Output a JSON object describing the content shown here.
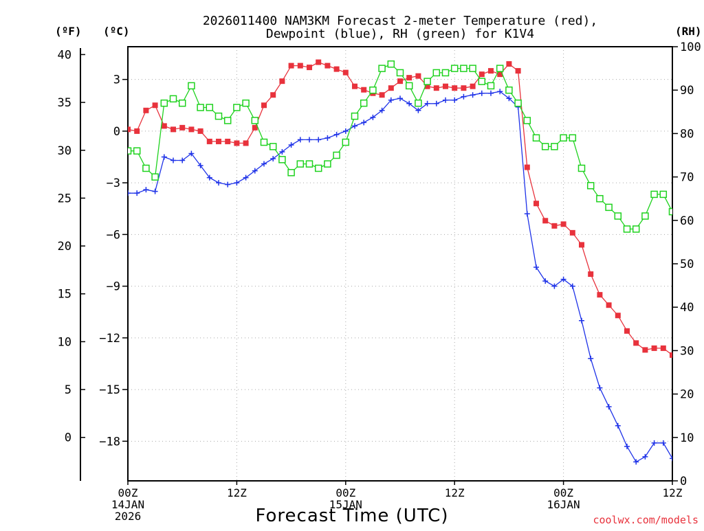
{
  "chart_data": {
    "type": "line",
    "title_line1": "2026011400 NAM3KM Forecast 2-meter Temperature (red),",
    "title_line2": "Dewpoint (blue), RH (green) for K1V4",
    "xlabel": "Forecast Time (UTC)",
    "credit": "coolwx.com/models",
    "x_range_hours": [
      0,
      60
    ],
    "x_ticks": [
      {
        "hour": 0,
        "lines": [
          "00Z",
          "14JAN",
          "2026"
        ]
      },
      {
        "hour": 12,
        "lines": [
          "12Z"
        ]
      },
      {
        "hour": 24,
        "lines": [
          "00Z",
          "15JAN"
        ]
      },
      {
        "hour": 36,
        "lines": [
          "12Z"
        ]
      },
      {
        "hour": 48,
        "lines": [
          "00Z",
          "16JAN"
        ]
      },
      {
        "hour": 60,
        "lines": [
          "12Z"
        ]
      }
    ],
    "left_axis_f": {
      "unit_label": "(ºF)",
      "ticks": [
        40,
        35,
        30,
        25,
        20,
        15,
        10,
        5,
        0
      ]
    },
    "left_axis_c": {
      "unit_label": "(ºC)",
      "ticks": [
        3,
        0,
        -3,
        -6,
        -9,
        -12,
        -15,
        -18
      ],
      "range": [
        -20.3,
        4.9
      ]
    },
    "right_axis_rh": {
      "unit_label": "(RH)",
      "ticks": [
        100,
        90,
        80,
        70,
        60,
        50,
        40,
        30,
        20,
        10,
        0
      ],
      "range": [
        0,
        100
      ]
    },
    "series": [
      {
        "name": "Temperature",
        "unit": "C",
        "color": "#e8323c",
        "marker": "filled-square",
        "x": [
          0,
          1,
          2,
          3,
          4,
          5,
          6,
          7,
          8,
          9,
          10,
          11,
          12,
          13,
          14,
          15,
          16,
          17,
          18,
          19,
          20,
          21,
          22,
          23,
          24,
          25,
          26,
          27,
          28,
          29,
          30,
          31,
          32,
          33,
          34,
          35,
          36,
          37,
          38,
          39,
          40,
          41,
          42,
          43,
          44,
          45,
          46,
          47,
          48,
          49,
          50,
          51,
          52,
          53,
          54,
          55,
          56,
          57,
          58,
          59,
          60
        ],
        "values": [
          0.1,
          0.0,
          1.2,
          1.5,
          0.3,
          0.1,
          0.2,
          0.1,
          0.0,
          -0.6,
          -0.6,
          -0.6,
          -0.7,
          -0.7,
          0.2,
          1.5,
          2.1,
          2.9,
          3.8,
          3.8,
          3.7,
          4.0,
          3.8,
          3.6,
          3.4,
          2.6,
          2.4,
          2.2,
          2.1,
          2.5,
          2.9,
          3.1,
          3.2,
          2.6,
          2.5,
          2.6,
          2.5,
          2.5,
          2.6,
          3.3,
          3.5,
          3.3,
          3.9,
          3.5,
          -2.1,
          -4.2,
          -5.2,
          -5.5,
          -5.4,
          -5.9,
          -6.6,
          -8.3,
          -9.5,
          -10.1,
          -10.7,
          -11.6,
          -12.3,
          -12.7,
          -12.6,
          -12.6,
          -13.0
        ]
      },
      {
        "name": "Dewpoint",
        "unit": "C",
        "color": "#1e32e8",
        "marker": "plus",
        "x": [
          0,
          1,
          2,
          3,
          4,
          5,
          6,
          7,
          8,
          9,
          10,
          11,
          12,
          13,
          14,
          15,
          16,
          17,
          18,
          19,
          20,
          21,
          22,
          23,
          24,
          25,
          26,
          27,
          28,
          29,
          30,
          31,
          32,
          33,
          34,
          35,
          36,
          37,
          38,
          39,
          40,
          41,
          42,
          43,
          44,
          45,
          46,
          47,
          48,
          49,
          50,
          51,
          52,
          53,
          54,
          55,
          56,
          57,
          58,
          59,
          60
        ],
        "values": [
          -3.6,
          -3.6,
          -3.4,
          -3.5,
          -1.5,
          -1.7,
          -1.7,
          -1.3,
          -2.0,
          -2.7,
          -3.0,
          -3.1,
          -3.0,
          -2.7,
          -2.3,
          -1.9,
          -1.6,
          -1.2,
          -0.8,
          -0.5,
          -0.5,
          -0.5,
          -0.4,
          -0.2,
          0.0,
          0.3,
          0.5,
          0.8,
          1.2,
          1.8,
          1.9,
          1.6,
          1.2,
          1.6,
          1.6,
          1.8,
          1.8,
          2.0,
          2.1,
          2.2,
          2.2,
          2.3,
          1.9,
          1.4,
          -4.8,
          -7.9,
          -8.7,
          -9.0,
          -8.6,
          -9.0,
          -11.0,
          -13.2,
          -14.9,
          -16.0,
          -17.1,
          -18.3,
          -19.2,
          -18.9,
          -18.1,
          -18.1,
          -19.0
        ]
      },
      {
        "name": "RH",
        "unit": "%",
        "color": "#1ed21e",
        "marker": "open-square",
        "x": [
          0,
          1,
          2,
          3,
          4,
          5,
          6,
          7,
          8,
          9,
          10,
          11,
          12,
          13,
          14,
          15,
          16,
          17,
          18,
          19,
          20,
          21,
          22,
          23,
          24,
          25,
          26,
          27,
          28,
          29,
          30,
          31,
          32,
          33,
          34,
          35,
          36,
          37,
          38,
          39,
          40,
          41,
          42,
          43,
          44,
          45,
          46,
          47,
          48,
          49,
          50,
          51,
          52,
          53,
          54,
          55,
          56,
          57,
          58,
          59,
          60
        ],
        "values": [
          76,
          76,
          72,
          70,
          87,
          88,
          87,
          91,
          86,
          86,
          84,
          83,
          86,
          87,
          83,
          78,
          77,
          74,
          71,
          73,
          73,
          72,
          73,
          75,
          78,
          84,
          87,
          90,
          95,
          96,
          94,
          91,
          87,
          92,
          94,
          94,
          95,
          95,
          95,
          92,
          91,
          95,
          90,
          87,
          83,
          79,
          77,
          77,
          79,
          79,
          72,
          68,
          65,
          63,
          61,
          58,
          58,
          61,
          66,
          66,
          62
        ]
      }
    ]
  }
}
